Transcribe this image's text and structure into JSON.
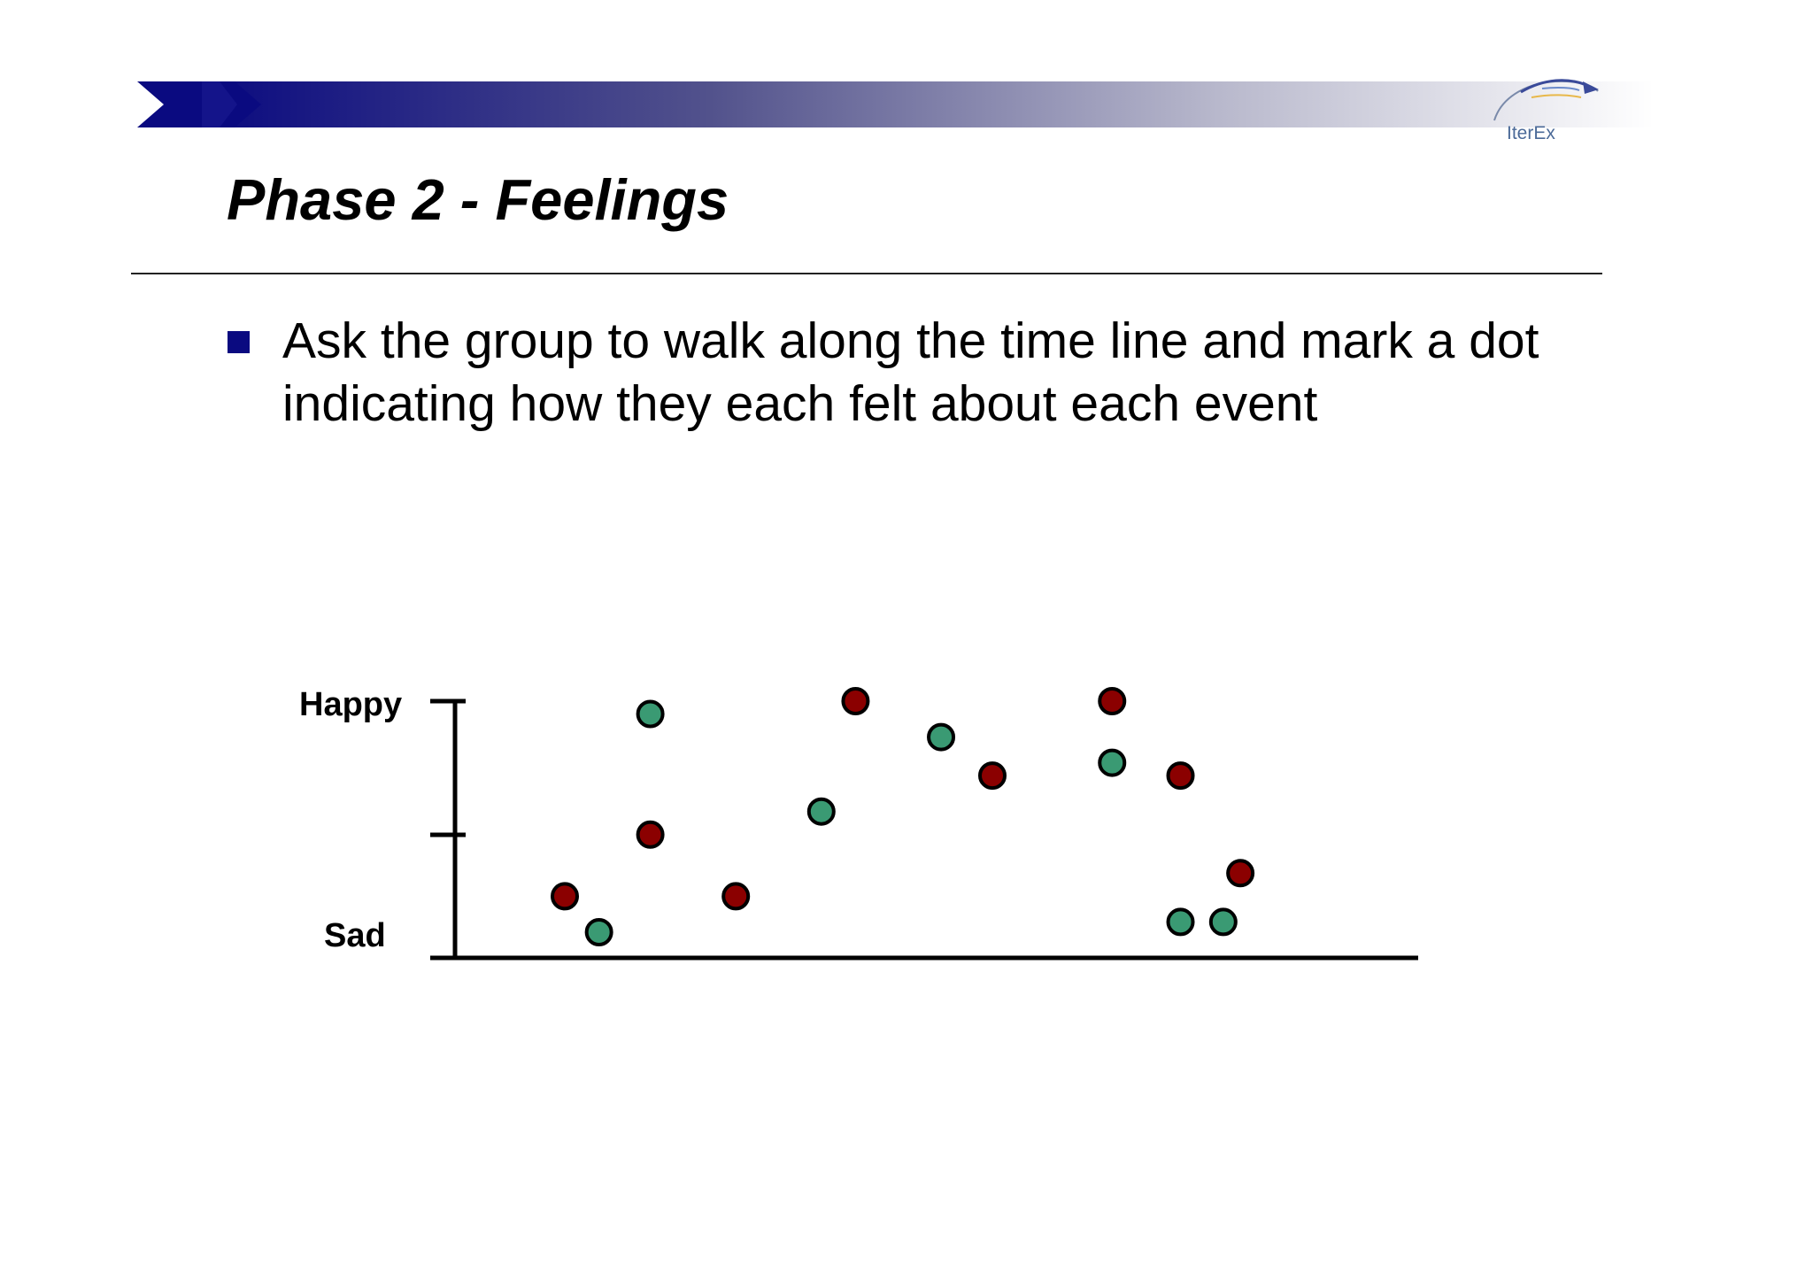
{
  "slide": {
    "title": "Phase 2 - Feelings",
    "bullet": "Ask the group to walk along the time line and mark a dot indicating how they each felt about each event",
    "logo_text": "IterEx",
    "colors": {
      "banner_dark": "#0a0a80",
      "title_text": "#000000",
      "bullet_marker": "#0a0a80",
      "logo_text": "#4b6a98"
    }
  },
  "chart_data": {
    "type": "scatter",
    "title": "",
    "xlabel": "",
    "ylabel": "",
    "y_tick_labels": {
      "top": "Happy",
      "bottom": "Sad"
    },
    "ylim": [
      0,
      1
    ],
    "series": [
      {
        "color": "#8b0000",
        "points": [
          {
            "x": 1.0,
            "y": 0.24
          },
          {
            "x": 2.0,
            "y": 0.48
          },
          {
            "x": 3.0,
            "y": 0.24
          },
          {
            "x": 4.4,
            "y": 1.0
          },
          {
            "x": 6.0,
            "y": 0.71
          },
          {
            "x": 7.4,
            "y": 1.0
          },
          {
            "x": 8.2,
            "y": 0.71
          },
          {
            "x": 8.9,
            "y": 0.33
          }
        ]
      },
      {
        "color": "#3a9a73",
        "points": [
          {
            "x": 1.4,
            "y": 0.1
          },
          {
            "x": 2.0,
            "y": 0.95
          },
          {
            "x": 4.0,
            "y": 0.57
          },
          {
            "x": 5.4,
            "y": 0.86
          },
          {
            "x": 7.4,
            "y": 0.76
          },
          {
            "x": 8.2,
            "y": 0.14
          },
          {
            "x": 8.7,
            "y": 0.14
          }
        ]
      }
    ]
  }
}
